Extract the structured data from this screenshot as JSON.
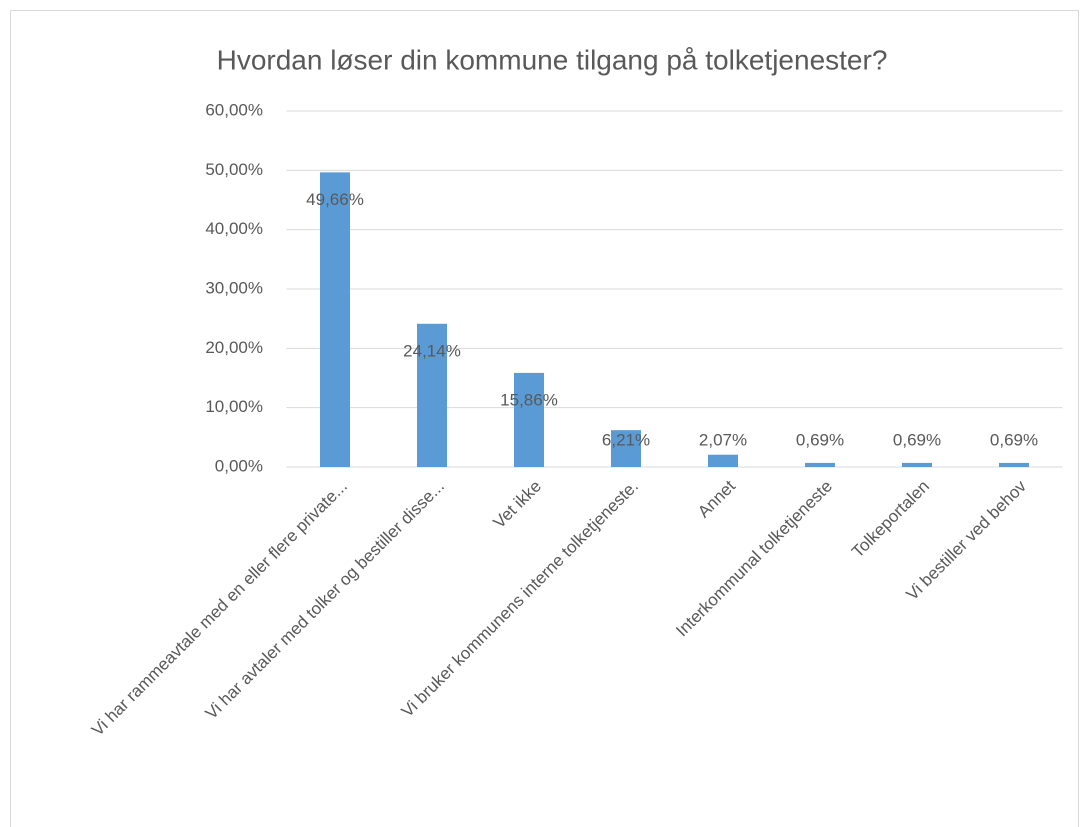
{
  "chart_data": {
    "type": "bar",
    "title": "Hvordan løser din kommune tilgang på tolketjenester?",
    "categories": [
      "Vi har rammeavtale med en eller flere private...",
      "Vi har avtaler med tolker og bestiller disse...",
      "Vet ikke",
      "Vi bruker kommunens interne tolketjeneste.",
      "Annet",
      "Interkommunal tolketjeneste",
      "Tolkeportalen",
      "Vi bestiller ved behov"
    ],
    "values": [
      49.66,
      24.14,
      15.86,
      6.21,
      2.07,
      0.69,
      0.69,
      0.69
    ],
    "value_labels": [
      "49,66%",
      "24,14%",
      "15,86%",
      "6,21%",
      "2,07%",
      "0,69%",
      "0,69%",
      "0,69%"
    ],
    "color": "#5b9bd5",
    "ylim": [
      0,
      60
    ],
    "yticks": [
      {
        "value": 0,
        "label": "0,00%"
      },
      {
        "value": 10,
        "label": "10,00%"
      },
      {
        "value": 20,
        "label": "20,00%"
      },
      {
        "value": 30,
        "label": "30,00%"
      },
      {
        "value": 40,
        "label": "40,00%"
      },
      {
        "value": 50,
        "label": "50,00%"
      },
      {
        "value": 60,
        "label": "60,00%"
      }
    ],
    "grid": true
  }
}
